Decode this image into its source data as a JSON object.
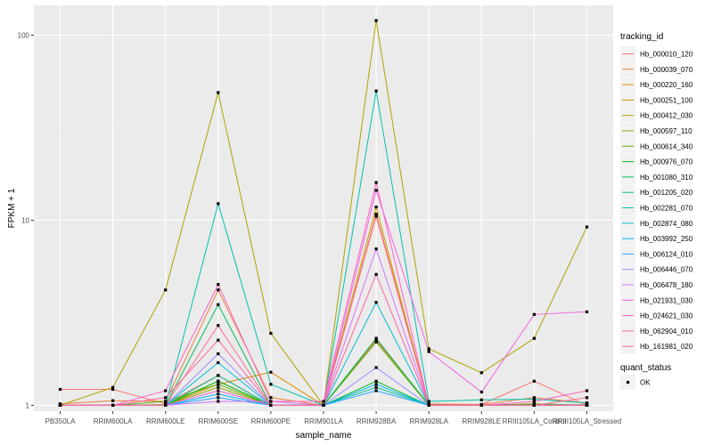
{
  "chart_data": {
    "type": "line",
    "xlabel": "sample_name",
    "ylabel": "FPKM + 1",
    "y_scale": "log10",
    "ylim": [
      0.93,
      145
    ],
    "y_ticks": [
      1,
      10,
      100
    ],
    "y_tick_labels": [
      "1",
      "10",
      "100"
    ],
    "categories": [
      "PB350LA",
      "RRIM600LA",
      "RRIM600LE",
      "RRIM600SE",
      "RRIM600PE",
      "RRIM901LA",
      "RRIM928BA",
      "RRIM928LA",
      "RRIM928LE",
      "RRIII105LA_Control",
      "RRIII105LA_Stressed"
    ],
    "legend_title": "tracking_id",
    "legend_position": "right",
    "series": [
      {
        "name": "Hb_000010_120",
        "color": "#F8766D",
        "values": [
          1.22,
          1.22,
          1.02,
          1.45,
          1.0,
          1.0,
          2.25,
          1.01,
          1.01,
          1.35,
          1.0
        ]
      },
      {
        "name": "Hb_000039_070",
        "color": "#EC8239",
        "values": [
          1.02,
          1.06,
          1.05,
          4.2,
          1.1,
          1.0,
          10.8,
          1.02,
          1.01,
          1.1,
          1.03
        ]
      },
      {
        "name": "Hb_000220_160",
        "color": "#DB8E00",
        "values": [
          1.0,
          1.0,
          1.0,
          1.3,
          1.51,
          1.0,
          2.3,
          1.0,
          1.0,
          1.02,
          1.0
        ]
      },
      {
        "name": "Hb_000251_100",
        "color": "#C79800",
        "values": [
          1.0,
          1.0,
          1.01,
          1.35,
          1.0,
          1.0,
          11.8,
          1.0,
          1.0,
          1.0,
          1.01
        ]
      },
      {
        "name": "Hb_000412_030",
        "color": "#AEA200",
        "values": [
          1.0,
          1.25,
          4.2,
          49.0,
          2.45,
          1.0,
          120.0,
          2.02,
          1.5,
          2.3,
          9.2
        ]
      },
      {
        "name": "Hb_000597_110",
        "color": "#8FAA00",
        "values": [
          1.0,
          1.0,
          1.0,
          1.25,
          1.0,
          1.0,
          2.2,
          1.0,
          1.0,
          1.0,
          1.0
        ]
      },
      {
        "name": "Hb_000614_340",
        "color": "#64B200",
        "values": [
          1.0,
          1.0,
          1.05,
          1.3,
          1.0,
          1.0,
          2.2,
          1.0,
          1.0,
          1.02,
          1.0
        ]
      },
      {
        "name": "Hb_000976_070",
        "color": "#00B81B",
        "values": [
          1.0,
          1.0,
          1.0,
          1.35,
          1.0,
          1.0,
          1.35,
          1.0,
          1.0,
          1.0,
          1.0
        ]
      },
      {
        "name": "Hb_001080_310",
        "color": "#00BD5C",
        "values": [
          1.0,
          1.0,
          1.0,
          3.5,
          1.0,
          1.0,
          2.3,
          1.0,
          1.0,
          1.0,
          1.0
        ]
      },
      {
        "name": "Hb_001205_020",
        "color": "#00C08E",
        "values": [
          1.0,
          1.0,
          1.0,
          1.45,
          1.0,
          1.0,
          1.25,
          1.0,
          1.0,
          1.0,
          1.0
        ]
      },
      {
        "name": "Hb_002281_070",
        "color": "#00C1B2",
        "values": [
          1.0,
          1.0,
          1.0,
          12.3,
          1.3,
          1.0,
          50.0,
          1.05,
          1.07,
          1.08,
          1.03
        ]
      },
      {
        "name": "Hb_002874_080",
        "color": "#00BCD6",
        "values": [
          1.0,
          1.0,
          1.0,
          1.7,
          1.0,
          1.0,
          3.6,
          1.0,
          1.0,
          1.0,
          1.0
        ]
      },
      {
        "name": "Hb_003992_250",
        "color": "#00B3F2",
        "values": [
          1.0,
          1.0,
          1.0,
          1.15,
          1.0,
          1.0,
          1.3,
          1.0,
          1.0,
          1.0,
          1.0
        ]
      },
      {
        "name": "Hb_006124_010",
        "color": "#29A3FF",
        "values": [
          1.0,
          1.0,
          1.0,
          1.1,
          1.0,
          1.0,
          1.2,
          1.0,
          1.0,
          1.0,
          1.0
        ]
      },
      {
        "name": "Hb_006446_070",
        "color": "#9C8DFF",
        "values": [
          1.0,
          1.0,
          1.0,
          1.9,
          1.0,
          1.0,
          1.6,
          1.0,
          1.0,
          1.0,
          1.0
        ]
      },
      {
        "name": "Hb_006478_180",
        "color": "#D575FE",
        "values": [
          1.0,
          1.0,
          1.0,
          1.05,
          1.05,
          1.0,
          7.0,
          1.0,
          1.0,
          1.0,
          1.0
        ]
      },
      {
        "name": "Hb_021931_030",
        "color": "#F064E2",
        "values": [
          1.0,
          1.0,
          1.0,
          1.2,
          1.0,
          1.0,
          14.5,
          1.95,
          1.18,
          3.1,
          3.2
        ]
      },
      {
        "name": "Hb_024621_030",
        "color": "#FD61C3",
        "values": [
          1.0,
          1.0,
          1.2,
          4.5,
          1.05,
          1.05,
          16.0,
          1.0,
          1.0,
          1.05,
          1.2
        ]
      },
      {
        "name": "Hb_062904_010",
        "color": "#FF659E",
        "values": [
          1.0,
          1.0,
          1.1,
          2.25,
          1.0,
          1.0,
          5.1,
          1.0,
          1.0,
          1.0,
          1.0
        ]
      },
      {
        "name": "Hb_161981_020",
        "color": "#FF6C91",
        "values": [
          1.0,
          1.0,
          1.0,
          2.7,
          1.0,
          1.0,
          10.5,
          1.0,
          1.0,
          1.0,
          1.1
        ]
      }
    ],
    "status_legend_title": "quant_status",
    "status_legend_entries": [
      "OK"
    ]
  }
}
